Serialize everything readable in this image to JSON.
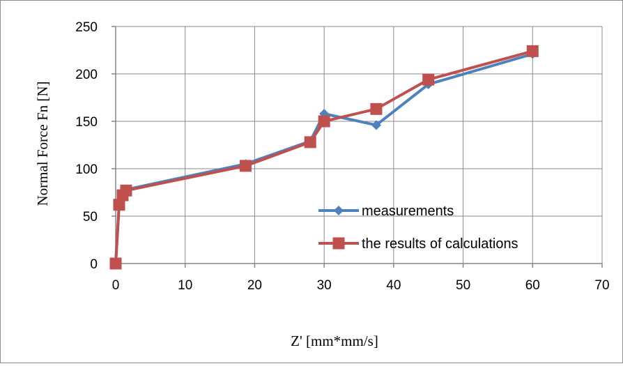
{
  "chart_data": {
    "type": "line",
    "title": "",
    "xlabel": "Z' [mm*mm/s]",
    "ylabel": "Normal Force Fn [N]",
    "xlim": [
      0,
      70
    ],
    "ylim": [
      0,
      250
    ],
    "xticks": [
      0,
      10,
      20,
      30,
      40,
      50,
      60,
      70
    ],
    "yticks": [
      0,
      50,
      100,
      150,
      200,
      250
    ],
    "grid": true,
    "legend_position": "lower-right",
    "series": [
      {
        "name": "measurements",
        "color": "#4f81bd",
        "marker": "diamond",
        "x": [
          0,
          0.5,
          1,
          1.5,
          18.7,
          28,
          30,
          37.5,
          45,
          60
        ],
        "y": [
          0,
          62,
          73,
          78,
          105,
          129,
          158,
          146,
          189,
          221
        ]
      },
      {
        "name": "the results of calculations",
        "color": "#c0504d",
        "marker": "square",
        "x": [
          0,
          0.5,
          1,
          1.5,
          18.7,
          28,
          30,
          37.5,
          45,
          60
        ],
        "y": [
          0,
          62,
          72,
          77,
          103,
          128,
          150,
          163,
          194,
          224
        ]
      }
    ]
  }
}
